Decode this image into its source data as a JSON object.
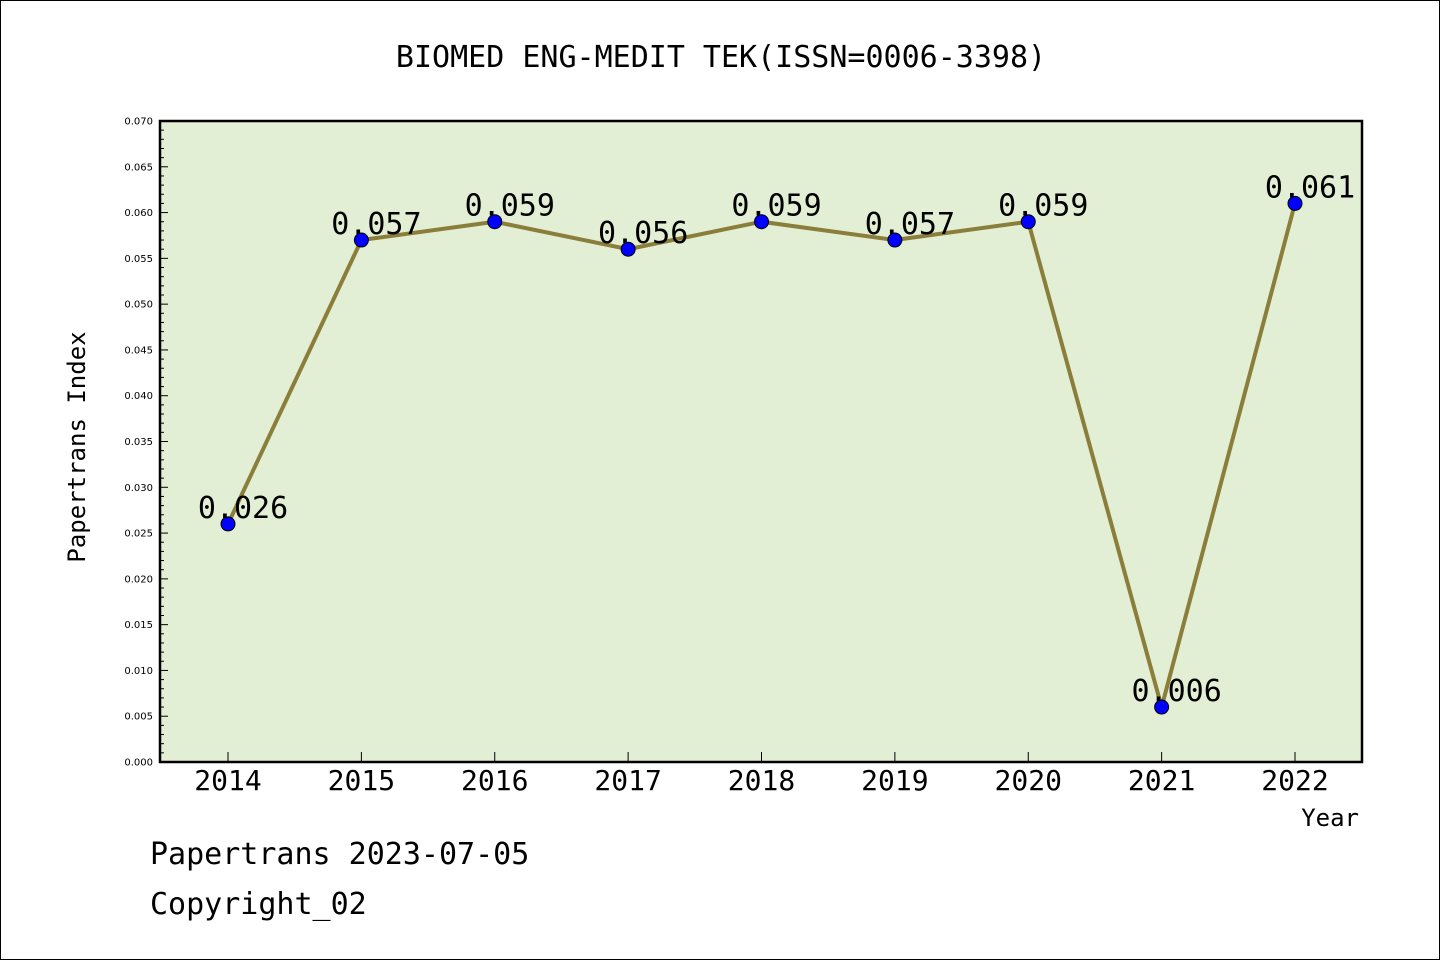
{
  "chart_data": {
    "type": "line",
    "title": "BIOMED ENG-MEDIT TEK(ISSN=0006-3398)",
    "xlabel": "Year",
    "ylabel": "Papertrans Index",
    "categories": [
      "2014",
      "2015",
      "2016",
      "2017",
      "2018",
      "2019",
      "2020",
      "2021",
      "2022"
    ],
    "series": [
      {
        "values": [
          0.026,
          0.057,
          0.059,
          0.056,
          0.059,
          0.057,
          0.059,
          0.006,
          0.061
        ],
        "labels": [
          "0.026",
          "0.057",
          "0.059",
          "0.056",
          "0.059",
          "0.057",
          "0.059",
          "0.006",
          "0.061"
        ],
        "line_color": "#8b7d3a",
        "marker_color": "#0000ff"
      }
    ],
    "ylim": [
      0,
      0.07
    ],
    "yticks": [
      "0.000",
      "0.005",
      "0.010",
      "0.015",
      "0.020",
      "0.025",
      "0.030",
      "0.035",
      "0.040",
      "0.045",
      "0.050",
      "0.055",
      "0.060",
      "0.065",
      "0.070"
    ],
    "grid": false,
    "plot_background": "#e2efd5"
  },
  "footer": {
    "line1": "Papertrans 2023-07-05",
    "line2": "Copyright_02"
  }
}
